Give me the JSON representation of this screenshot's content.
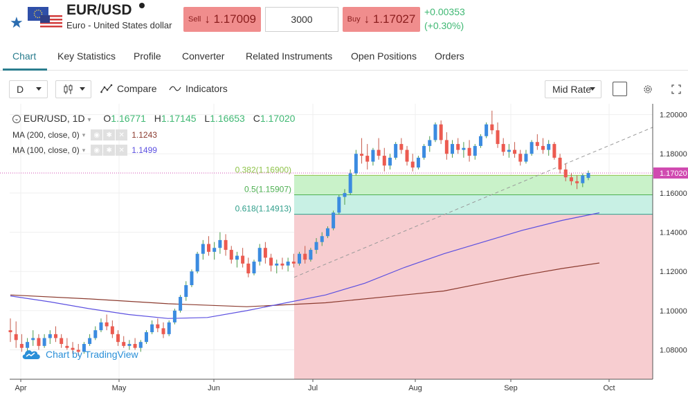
{
  "header": {
    "symbol": "EUR/USD",
    "name": "Euro - United States dollar",
    "sell_label": "Sell",
    "sell_price": "↓ 1.17009",
    "quantity": "3000",
    "buy_label": "Buy",
    "buy_price": "↓ 1.17027",
    "change_abs": "+0.00353",
    "change_pct": "(+0.30%)",
    "star_icon": "star-icon"
  },
  "tabs": [
    {
      "label": "Chart",
      "active": true
    },
    {
      "label": "Key Statistics"
    },
    {
      "label": "Profile"
    },
    {
      "label": "Converter"
    },
    {
      "label": "Related Instruments"
    },
    {
      "label": "Open Positions"
    },
    {
      "label": "Orders"
    }
  ],
  "toolbar": {
    "interval": "D",
    "compare": "Compare",
    "indicators": "Indicators",
    "rate_mode": "Mid Rate"
  },
  "legend": {
    "title": "EUR/USD, 1D",
    "o_label": "O",
    "o": "1.16771",
    "h_label": "H",
    "h": "1.17145",
    "l_label": "L",
    "l": "1.16653",
    "c_label": "C",
    "c": "1.17020",
    "ma200_label": "MA (200, close, 0)",
    "ma200_value": "1.1243",
    "ma100_label": "MA (100, close, 0)",
    "ma100_value": "1.1499"
  },
  "watermark": "Chart by TradingView",
  "colors": {
    "accent": "#2a7d8e",
    "up": "#3fb873",
    "down": "#ec5a50",
    "ma100": "#5b4fe0",
    "ma200": "#8b3a2e",
    "sell_bg": "#f08d8d"
  },
  "chart_data": {
    "type": "candlestick",
    "x_labels": [
      "Apr",
      "May",
      "Jun",
      "Jul",
      "Aug",
      "Sep",
      "Oct"
    ],
    "y_ticks": [
      "1.20000",
      "1.18000",
      "1.16000",
      "1.14000",
      "1.12000",
      "1.10000",
      "1.08000"
    ],
    "ylim": [
      1.065,
      1.2055
    ],
    "last_price_label": "1.17020",
    "fib_levels": [
      {
        "label": "0.382(1.16900)",
        "value": 1.169
      },
      {
        "label": "0.5(1.15907)",
        "value": 1.15907
      },
      {
        "label": "0.618(1.14913)",
        "value": 1.14913
      }
    ],
    "candles": [
      [
        1.09,
        1.096,
        1.084,
        1.089
      ],
      [
        1.088,
        1.0945,
        1.081,
        1.085
      ],
      [
        1.083,
        1.088,
        1.079,
        1.081
      ],
      [
        1.081,
        1.086,
        1.079,
        1.084
      ],
      [
        1.085,
        1.09,
        1.082,
        1.086
      ],
      [
        1.086,
        1.088,
        1.08,
        1.082
      ],
      [
        1.082,
        1.088,
        1.081,
        1.086
      ],
      [
        1.086,
        1.09,
        1.083,
        1.088
      ],
      [
        1.088,
        1.092,
        1.084,
        1.086
      ],
      [
        1.086,
        1.088,
        1.081,
        1.083
      ],
      [
        1.082,
        1.086,
        1.08,
        1.081
      ],
      [
        1.081,
        1.084,
        1.078,
        1.08
      ],
      [
        1.08,
        1.083,
        1.077,
        1.079
      ],
      [
        1.079,
        1.084,
        1.078,
        1.083
      ],
      [
        1.083,
        1.088,
        1.082,
        1.086
      ],
      [
        1.086,
        1.092,
        1.085,
        1.09
      ],
      [
        1.09,
        1.096,
        1.089,
        1.094
      ],
      [
        1.094,
        1.098,
        1.09,
        1.092
      ],
      [
        1.092,
        1.095,
        1.086,
        1.088
      ],
      [
        1.088,
        1.09,
        1.082,
        1.084
      ],
      [
        1.084,
        1.087,
        1.081,
        1.082
      ],
      [
        1.082,
        1.085,
        1.08,
        1.083
      ],
      [
        1.083,
        1.086,
        1.08,
        1.081
      ],
      [
        1.081,
        1.085,
        1.079,
        1.084
      ],
      [
        1.084,
        1.09,
        1.083,
        1.089
      ],
      [
        1.089,
        1.095,
        1.088,
        1.093
      ],
      [
        1.093,
        1.096,
        1.089,
        1.091
      ],
      [
        1.091,
        1.094,
        1.086,
        1.088
      ],
      [
        1.088,
        1.095,
        1.087,
        1.094
      ],
      [
        1.094,
        1.101,
        1.093,
        1.1
      ],
      [
        1.1,
        1.108,
        1.099,
        1.107
      ],
      [
        1.107,
        1.115,
        1.105,
        1.113
      ],
      [
        1.113,
        1.121,
        1.112,
        1.12
      ],
      [
        1.12,
        1.13,
        1.119,
        1.129
      ],
      [
        1.129,
        1.136,
        1.126,
        1.134
      ],
      [
        1.134,
        1.138,
        1.128,
        1.13
      ],
      [
        1.13,
        1.135,
        1.126,
        1.132
      ],
      [
        1.132,
        1.14,
        1.129,
        1.136
      ],
      [
        1.136,
        1.139,
        1.128,
        1.131
      ],
      [
        1.131,
        1.133,
        1.124,
        1.126
      ],
      [
        1.126,
        1.13,
        1.122,
        1.128
      ],
      [
        1.128,
        1.132,
        1.122,
        1.124
      ],
      [
        1.124,
        1.127,
        1.117,
        1.119
      ],
      [
        1.119,
        1.126,
        1.118,
        1.125
      ],
      [
        1.125,
        1.134,
        1.123,
        1.132
      ],
      [
        1.132,
        1.135,
        1.124,
        1.127
      ],
      [
        1.127,
        1.129,
        1.12,
        1.123
      ],
      [
        1.123,
        1.126,
        1.119,
        1.124
      ],
      [
        1.124,
        1.127,
        1.121,
        1.123
      ],
      [
        1.123,
        1.127,
        1.12,
        1.125
      ],
      [
        1.125,
        1.129,
        1.122,
        1.124
      ],
      [
        1.124,
        1.13,
        1.123,
        1.129
      ],
      [
        1.129,
        1.133,
        1.124,
        1.126
      ],
      [
        1.126,
        1.132,
        1.125,
        1.131
      ],
      [
        1.131,
        1.137,
        1.129,
        1.135
      ],
      [
        1.135,
        1.14,
        1.133,
        1.138
      ],
      [
        1.138,
        1.143,
        1.137,
        1.142
      ],
      [
        1.142,
        1.151,
        1.141,
        1.15
      ],
      [
        1.15,
        1.159,
        1.149,
        1.158
      ],
      [
        1.158,
        1.162,
        1.154,
        1.16
      ],
      [
        1.16,
        1.172,
        1.159,
        1.17
      ],
      [
        1.17,
        1.182,
        1.169,
        1.18
      ],
      [
        1.18,
        1.188,
        1.175,
        1.179
      ],
      [
        1.179,
        1.185,
        1.172,
        1.176
      ],
      [
        1.176,
        1.183,
        1.174,
        1.182
      ],
      [
        1.182,
        1.188,
        1.177,
        1.179
      ],
      [
        1.179,
        1.183,
        1.171,
        1.174
      ],
      [
        1.174,
        1.18,
        1.172,
        1.178
      ],
      [
        1.178,
        1.186,
        1.177,
        1.185
      ],
      [
        1.185,
        1.188,
        1.18,
        1.182
      ],
      [
        1.182,
        1.184,
        1.174,
        1.176
      ],
      [
        1.176,
        1.18,
        1.171,
        1.173
      ],
      [
        1.173,
        1.179,
        1.172,
        1.178
      ],
      [
        1.178,
        1.185,
        1.177,
        1.184
      ],
      [
        1.184,
        1.189,
        1.181,
        1.187
      ],
      [
        1.187,
        1.196,
        1.186,
        1.195
      ],
      [
        1.195,
        1.197,
        1.185,
        1.187
      ],
      [
        1.187,
        1.191,
        1.177,
        1.18
      ],
      [
        1.18,
        1.187,
        1.178,
        1.185
      ],
      [
        1.185,
        1.188,
        1.18,
        1.182
      ],
      [
        1.182,
        1.186,
        1.178,
        1.183
      ],
      [
        1.183,
        1.187,
        1.176,
        1.179
      ],
      [
        1.179,
        1.185,
        1.177,
        1.184
      ],
      [
        1.184,
        1.19,
        1.183,
        1.189
      ],
      [
        1.189,
        1.196,
        1.188,
        1.195
      ],
      [
        1.195,
        1.202,
        1.19,
        1.192
      ],
      [
        1.192,
        1.196,
        1.183,
        1.185
      ],
      [
        1.185,
        1.188,
        1.179,
        1.181
      ],
      [
        1.181,
        1.185,
        1.178,
        1.182
      ],
      [
        1.182,
        1.186,
        1.178,
        1.18
      ],
      [
        1.18,
        1.182,
        1.174,
        1.176
      ],
      [
        1.176,
        1.182,
        1.175,
        1.18
      ],
      [
        1.18,
        1.187,
        1.179,
        1.186
      ],
      [
        1.186,
        1.19,
        1.182,
        1.184
      ],
      [
        1.184,
        1.188,
        1.18,
        1.182
      ],
      [
        1.182,
        1.187,
        1.179,
        1.185
      ],
      [
        1.185,
        1.186,
        1.177,
        1.178
      ],
      [
        1.178,
        1.18,
        1.17,
        1.172
      ],
      [
        1.172,
        1.175,
        1.166,
        1.168
      ],
      [
        1.168,
        1.17,
        1.164,
        1.166
      ],
      [
        1.166,
        1.169,
        1.162,
        1.165
      ],
      [
        1.165,
        1.17,
        1.163,
        1.169
      ],
      [
        1.1677,
        1.17145,
        1.16653,
        1.1702
      ]
    ],
    "ma100": [
      [
        0,
        1.1075
      ],
      [
        20,
        1.1045
      ],
      [
        40,
        1.101
      ],
      [
        60,
        1.098
      ],
      [
        80,
        1.096
      ],
      [
        100,
        1.0965
      ],
      [
        120,
        1.1
      ],
      [
        140,
        1.104
      ],
      [
        160,
        1.108
      ],
      [
        180,
        1.114
      ],
      [
        200,
        1.122
      ],
      [
        220,
        1.129
      ],
      [
        240,
        1.135
      ],
      [
        260,
        1.141
      ],
      [
        280,
        1.146
      ],
      [
        299,
        1.1499
      ]
    ],
    "ma200": [
      [
        0,
        1.108
      ],
      [
        40,
        1.106
      ],
      [
        80,
        1.1035
      ],
      [
        120,
        1.102
      ],
      [
        160,
        1.104
      ],
      [
        200,
        1.108
      ],
      [
        220,
        1.11
      ],
      [
        240,
        1.114
      ],
      [
        260,
        1.118
      ],
      [
        280,
        1.1215
      ],
      [
        299,
        1.1243
      ]
    ]
  }
}
